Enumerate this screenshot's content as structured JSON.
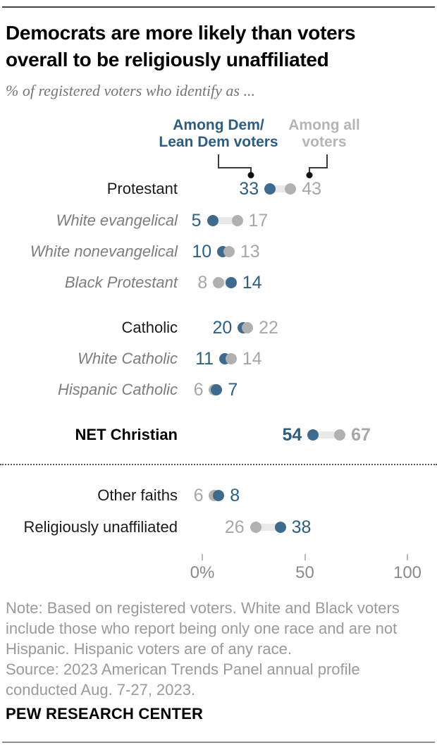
{
  "header": {
    "title_line1": "Democrats are more likely than voters",
    "title_line2": "overall to be religiously unaffiliated",
    "subtitle": "% of registered voters who identify as ..."
  },
  "legend": {
    "dem_line1": "Among Dem/",
    "dem_line2": "Lean Dem voters",
    "all_line1": "Among all",
    "all_line2": "voters"
  },
  "chart_data": {
    "type": "scatter",
    "subtype": "dot-plot",
    "series": [
      {
        "name": "Among Dem/Lean Dem voters",
        "key": "dem",
        "color": "#3e6b8d",
        "value_color": "#2e5e80"
      },
      {
        "name": "Among all voters",
        "key": "all",
        "color": "#b1b1b1",
        "value_color": "#a7a7a7"
      }
    ],
    "connector_color": "#e9e9e9",
    "rows": [
      {
        "label": "Protestant",
        "style": "main",
        "dem": 33,
        "all": 43
      },
      {
        "label": "White evangelical",
        "style": "sub",
        "dem": 5,
        "all": 17
      },
      {
        "label": "White nonevangelical",
        "style": "sub",
        "dem": 10,
        "all": 13
      },
      {
        "label": "Black Protestant",
        "style": "sub",
        "dem": 14,
        "all": 8
      },
      {
        "label": "Catholic",
        "style": "main",
        "dem": 20,
        "all": 22
      },
      {
        "label": "White Catholic",
        "style": "sub",
        "dem": 11,
        "all": 14
      },
      {
        "label": "Hispanic Catholic",
        "style": "sub",
        "dem": 7,
        "all": 6
      },
      {
        "label": "NET Christian",
        "style": "net",
        "dem": 54,
        "all": 67
      },
      {
        "label": "Other faiths",
        "style": "main",
        "dem": 8,
        "all": 6
      },
      {
        "label": "Religiously unaffiliated",
        "style": "main",
        "dem": 38,
        "all": 26
      }
    ],
    "axis": {
      "ticks": [
        "0%",
        "50",
        "100"
      ],
      "tick_values": [
        0,
        50,
        100
      ],
      "range": [
        0,
        100
      ],
      "grid": false,
      "legend_position": "top"
    }
  },
  "footer": {
    "note": "Note: Based on registered voters. White and Black voters include those who report being only one race and are not Hispanic. Hispanic voters are of any race.",
    "source": "Source: 2023 American Trends Panel annual profile conducted Aug. 7-27, 2023.",
    "brand": "PEW RESEARCH CENTER"
  }
}
